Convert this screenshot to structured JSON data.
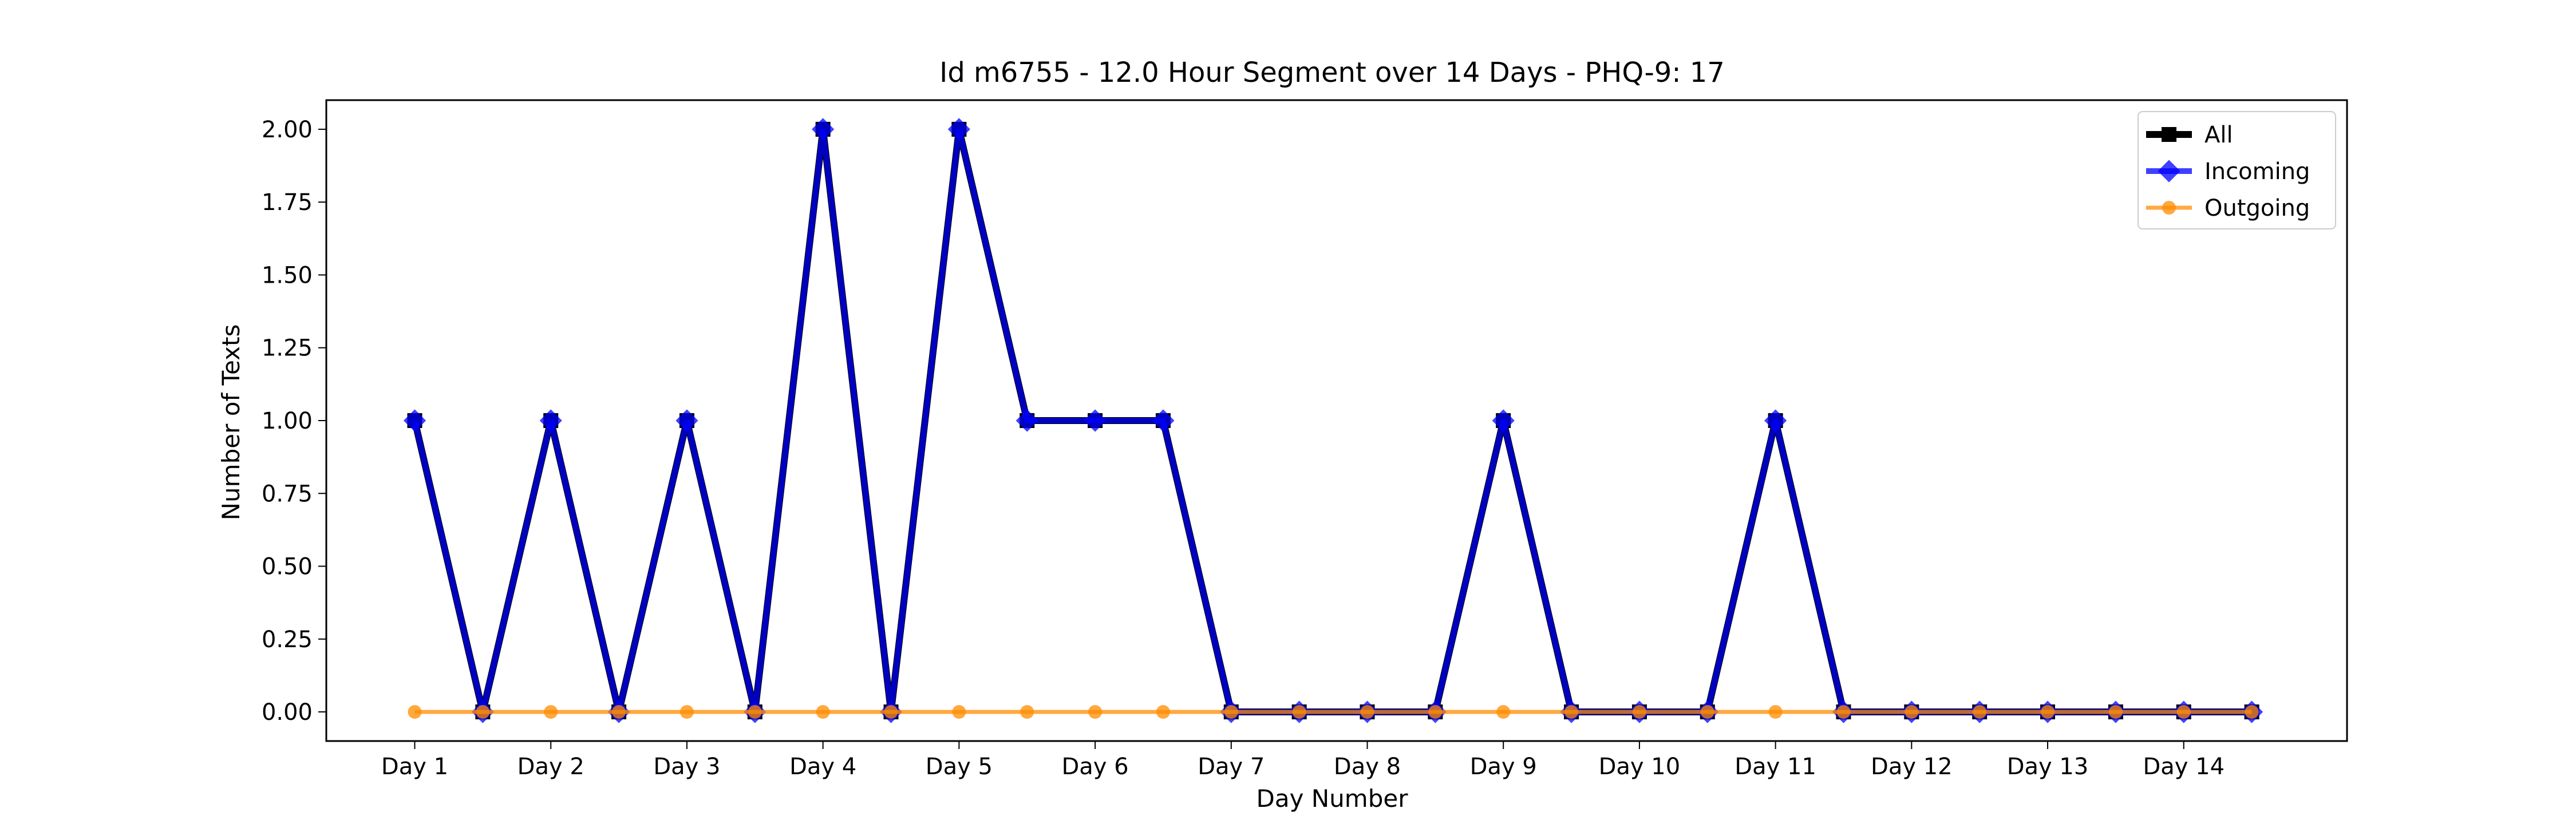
{
  "chart_data": {
    "type": "line",
    "title": "Id m6755 - 12.0 Hour Segment over 14 Days - PHQ-9: 17",
    "xlabel": "Day Number",
    "ylabel": "Number of Texts",
    "categories": [
      "Day 1",
      "Day 2",
      "Day 3",
      "Day 4",
      "Day 5",
      "Day 6",
      "Day 7",
      "Day 8",
      "Day 9",
      "Day 10",
      "Day 11",
      "Day 12",
      "Day 13",
      "Day 14"
    ],
    "x": [
      0,
      0.5,
      1,
      1.5,
      2,
      2.5,
      3,
      3.5,
      4,
      4.5,
      5,
      5.5,
      6,
      6.5,
      7,
      7.5,
      8,
      8.5,
      9,
      9.5,
      10,
      10.5,
      11,
      11.5,
      12,
      12.5,
      13,
      13.5
    ],
    "yticks": [
      "0.00",
      "0.25",
      "0.50",
      "0.75",
      "1.00",
      "1.25",
      "1.50",
      "1.75",
      "2.00"
    ],
    "ylim": [
      -0.1,
      2.1
    ],
    "xlim": [
      -0.65,
      14.2
    ],
    "grid": false,
    "legend_position": "top-right",
    "series": [
      {
        "name": "All",
        "color": "#000000",
        "marker": "square",
        "values": [
          1,
          0,
          1,
          0,
          1,
          0,
          2,
          0,
          2,
          1,
          1,
          1,
          0,
          0,
          0,
          0,
          1,
          0,
          0,
          0,
          1,
          0,
          0,
          0,
          0,
          0,
          0,
          0
        ]
      },
      {
        "name": "Incoming",
        "color": "#0000ff",
        "marker": "diamond",
        "values": [
          1,
          0,
          1,
          0,
          1,
          0,
          2,
          0,
          2,
          1,
          1,
          1,
          0,
          0,
          0,
          0,
          1,
          0,
          0,
          0,
          1,
          0,
          0,
          0,
          0,
          0,
          0,
          0
        ]
      },
      {
        "name": "Outgoing",
        "color": "#ff8c00",
        "marker": "circle",
        "values": [
          0,
          0,
          0,
          0,
          0,
          0,
          0,
          0,
          0,
          0,
          0,
          0,
          0,
          0,
          0,
          0,
          0,
          0,
          0,
          0,
          0,
          0,
          0,
          0,
          0,
          0,
          0,
          0
        ]
      }
    ]
  }
}
